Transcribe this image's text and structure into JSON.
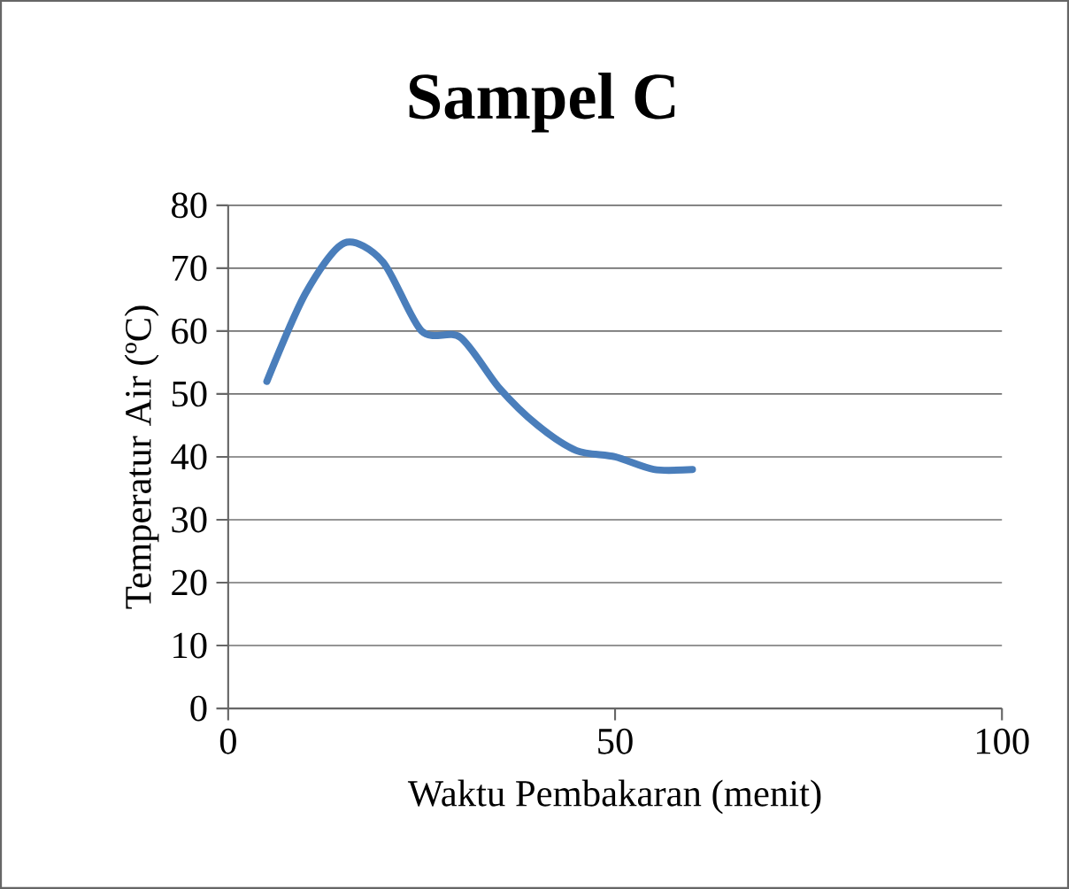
{
  "chart_data": {
    "type": "line",
    "title": "Sampel C",
    "xlabel": "Waktu Pembakaran (menit)",
    "ylabel": "Temperatur Air (ºC)",
    "x": [
      5,
      10,
      15,
      20,
      25,
      30,
      35,
      40,
      45,
      50,
      55,
      60
    ],
    "series": [
      {
        "color": "#4a7ebb",
        "values": [
          52,
          66,
          74,
          71,
          60,
          59,
          51,
          45,
          41,
          40,
          38,
          38
        ]
      }
    ],
    "xlim": [
      0,
      100
    ],
    "xticks": [
      0,
      50,
      100
    ],
    "ylim": [
      0,
      80
    ],
    "yticks": [
      0,
      10,
      20,
      30,
      40,
      50,
      60,
      70,
      80
    ],
    "grid": "y",
    "marker": "none",
    "line_style": "solid"
  }
}
